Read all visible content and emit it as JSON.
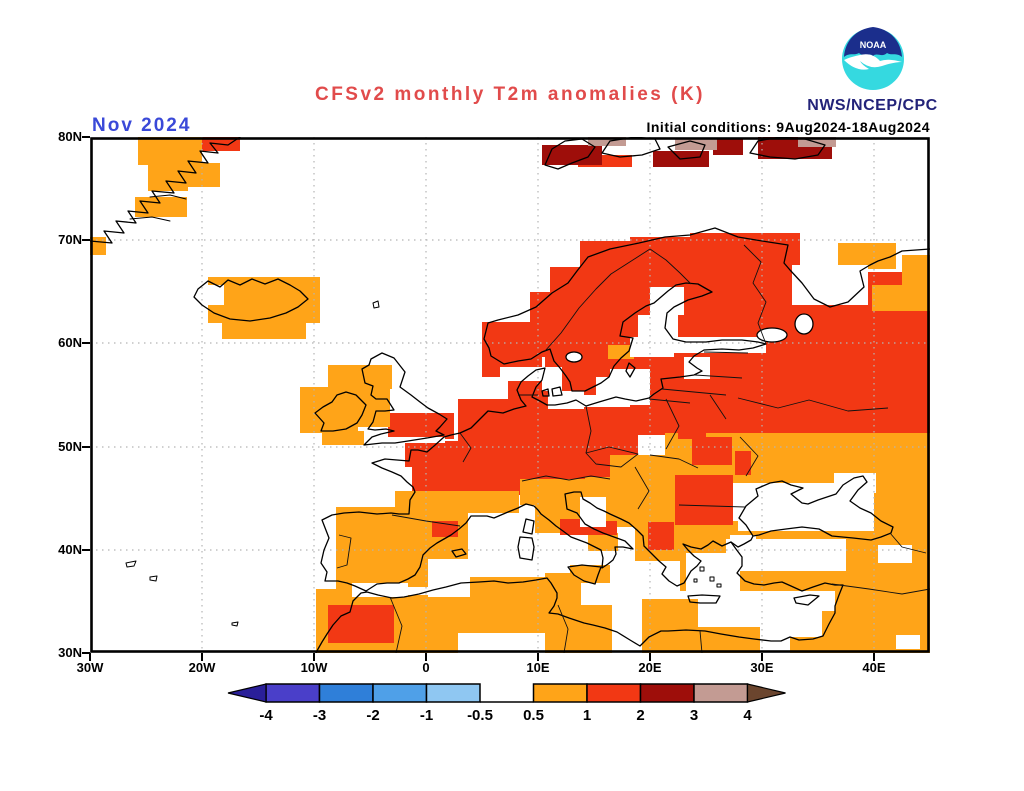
{
  "header": {
    "title": "CFSv2 monthly T2m anomalies (K)",
    "date_label": "Nov 2024",
    "init_conditions": "Initial conditions: 9Aug2024-18Aug2024",
    "agency": "NWS/NCEP/CPC",
    "logo": "noaa-logo",
    "logo_text": "NOAA"
  },
  "axes": {
    "lat_labels": [
      "80N",
      "70N",
      "60N",
      "50N",
      "40N",
      "30N"
    ],
    "lon_labels": [
      "30W",
      "20W",
      "10W",
      "0",
      "10E",
      "20E",
      "30E",
      "40E"
    ]
  },
  "colorbar": {
    "tick_labels": [
      "-4",
      "-3",
      "-2",
      "-1",
      "-0.5",
      "0.5",
      "1",
      "2",
      "3",
      "4"
    ],
    "interval_colors": [
      "#4a3fc9",
      "#2f7fd9",
      "#4fa0e8",
      "#8fc7f2",
      "gap",
      "#ffa418",
      "#f23814",
      "#9e0e0a",
      "#c39b93"
    ],
    "gap_index": 4,
    "left_arrow_color": "#2a1f99",
    "right_arrow_color": "#6b452e"
  },
  "palette": {
    "orange": "#ffa418",
    "red": "#f23814",
    "darkred": "#9e0e0a",
    "tan": "#c39b93",
    "white": "#ffffff",
    "title_red": "#e14b4b",
    "date_blue": "#3a49d8",
    "agency_navy": "#232379",
    "noaa_blue": "#1b2e8c",
    "noaa_cyan": "#35d9e0"
  },
  "cells": {
    "red": [
      [
        490,
        104,
        78,
        40
      ],
      [
        460,
        130,
        60,
        50
      ],
      [
        440,
        155,
        80,
        65
      ],
      [
        392,
        185,
        60,
        55
      ],
      [
        540,
        100,
        70,
        40
      ],
      [
        600,
        96,
        110,
        44
      ],
      [
        545,
        135,
        295,
        163
      ],
      [
        500,
        140,
        60,
        120
      ],
      [
        455,
        210,
        90,
        56
      ],
      [
        418,
        240,
        50,
        30
      ],
      [
        368,
        262,
        180,
        58
      ],
      [
        430,
        318,
        118,
        28
      ],
      [
        315,
        304,
        119,
        26
      ],
      [
        322,
        330,
        112,
        28
      ],
      [
        298,
        276,
        66,
        26
      ]
    ],
    "orange": [
      [
        48,
        0,
        64,
        28
      ],
      [
        84,
        26,
        46,
        24
      ],
      [
        58,
        28,
        40,
        26
      ],
      [
        45,
        60,
        52,
        20
      ],
      [
        0,
        100,
        16,
        18
      ],
      [
        118,
        140,
        112,
        46
      ],
      [
        132,
        186,
        84,
        16
      ],
      [
        210,
        250,
        58,
        46
      ],
      [
        238,
        228,
        64,
        44
      ],
      [
        252,
        268,
        48,
        22
      ],
      [
        232,
        294,
        42,
        14
      ],
      [
        305,
        354,
        124,
        22
      ],
      [
        246,
        370,
        132,
        88
      ],
      [
        226,
        452,
        142,
        64
      ],
      [
        306,
        452,
        70,
        44
      ],
      [
        368,
        440,
        108,
        56
      ],
      [
        455,
        436,
        36,
        80
      ],
      [
        476,
        468,
        46,
        48
      ],
      [
        552,
        462,
        56,
        54
      ],
      [
        608,
        490,
        62,
        26
      ],
      [
        732,
        474,
        108,
        42
      ],
      [
        745,
        446,
        95,
        34
      ],
      [
        700,
        500,
        140,
        16
      ],
      [
        430,
        342,
        90,
        14
      ],
      [
        430,
        352,
        78,
        16
      ],
      [
        445,
        368,
        60,
        28
      ],
      [
        498,
        396,
        30,
        18
      ],
      [
        480,
        428,
        40,
        18
      ],
      [
        520,
        318,
        110,
        42
      ],
      [
        575,
        296,
        105,
        50
      ],
      [
        495,
        340,
        95,
        50
      ],
      [
        545,
        386,
        70,
        38
      ],
      [
        620,
        296,
        220,
        50
      ],
      [
        782,
        340,
        58,
        48
      ],
      [
        755,
        388,
        85,
        68
      ],
      [
        590,
        384,
        250,
        70
      ],
      [
        748,
        106,
        58,
        26
      ],
      [
        782,
        148,
        58,
        26
      ],
      [
        812,
        118,
        28,
        32
      ],
      [
        518,
        208,
        26,
        14
      ]
    ],
    "red_accent": [
      [
        112,
        0,
        38,
        14
      ],
      [
        488,
        18,
        54,
        12
      ],
      [
        238,
        468,
        66,
        38
      ],
      [
        342,
        384,
        26,
        16
      ],
      [
        470,
        382,
        34,
        16
      ],
      [
        497,
        384,
        30,
        14
      ],
      [
        585,
        338,
        58,
        50
      ],
      [
        558,
        385,
        26,
        28
      ],
      [
        588,
        282,
        28,
        20
      ],
      [
        602,
        300,
        40,
        28
      ],
      [
        645,
        314,
        16,
        24
      ]
    ],
    "darkred": [
      [
        452,
        8,
        60,
        20
      ],
      [
        563,
        14,
        56,
        16
      ],
      [
        623,
        2,
        30,
        16
      ],
      [
        668,
        0,
        74,
        22
      ]
    ],
    "tan": [
      [
        498,
        0,
        38,
        9
      ],
      [
        585,
        2,
        42,
        11
      ],
      [
        708,
        0,
        38,
        10
      ]
    ],
    "white": [
      [
        560,
        150,
        34,
        28
      ],
      [
        548,
        178,
        40,
        26
      ],
      [
        540,
        200,
        44,
        20
      ],
      [
        578,
        200,
        98,
        16
      ],
      [
        594,
        220,
        26,
        22
      ],
      [
        520,
        232,
        40,
        36
      ],
      [
        506,
        240,
        36,
        24
      ],
      [
        484,
        258,
        56,
        12
      ],
      [
        410,
        230,
        50,
        14
      ],
      [
        452,
        230,
        20,
        24
      ],
      [
        458,
        254,
        36,
        18
      ],
      [
        702,
        128,
        76,
        40
      ],
      [
        300,
        252,
        42,
        24
      ],
      [
        338,
        422,
        42,
        38
      ],
      [
        262,
        446,
        56,
        14
      ],
      [
        300,
        450,
        40,
        8
      ],
      [
        648,
        348,
        136,
        46
      ],
      [
        744,
        336,
        42,
        20
      ],
      [
        636,
        402,
        120,
        32
      ],
      [
        640,
        398,
        26,
        12
      ],
      [
        596,
        416,
        54,
        38
      ],
      [
        788,
        408,
        34,
        18
      ],
      [
        806,
        498,
        24,
        14
      ],
      [
        490,
        360,
        26,
        30
      ],
      [
        285,
        300,
        70,
        6
      ],
      [
        112,
        148,
        22,
        20
      ]
    ]
  }
}
